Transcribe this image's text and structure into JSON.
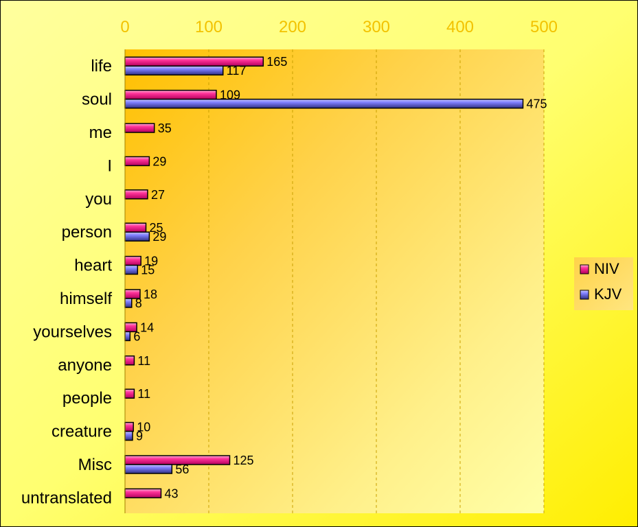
{
  "chart_data": {
    "type": "bar",
    "orientation": "horizontal",
    "categories": [
      "life",
      "soul",
      "me",
      "I",
      "you",
      "person",
      "heart",
      "himself",
      "yourselves",
      "anyone",
      "people",
      "creature",
      "Misc",
      "untranslated"
    ],
    "series": [
      {
        "name": "NIV",
        "values": [
          165,
          109,
          35,
          29,
          27,
          25,
          19,
          18,
          14,
          11,
          11,
          10,
          125,
          43
        ]
      },
      {
        "name": "KJV",
        "values": [
          117,
          475,
          null,
          null,
          null,
          29,
          15,
          8,
          6,
          null,
          null,
          9,
          56,
          null
        ]
      }
    ],
    "xlim": [
      0,
      500
    ],
    "xticks": [
      0,
      100,
      200,
      300,
      400,
      500
    ],
    "grid": true,
    "legend": "right"
  },
  "colors": {
    "niv": "#ff3399",
    "kjv": "#8080ff",
    "tick_labels": "#f2c200",
    "background": "#ffff66",
    "plot": "#ffcc33"
  }
}
